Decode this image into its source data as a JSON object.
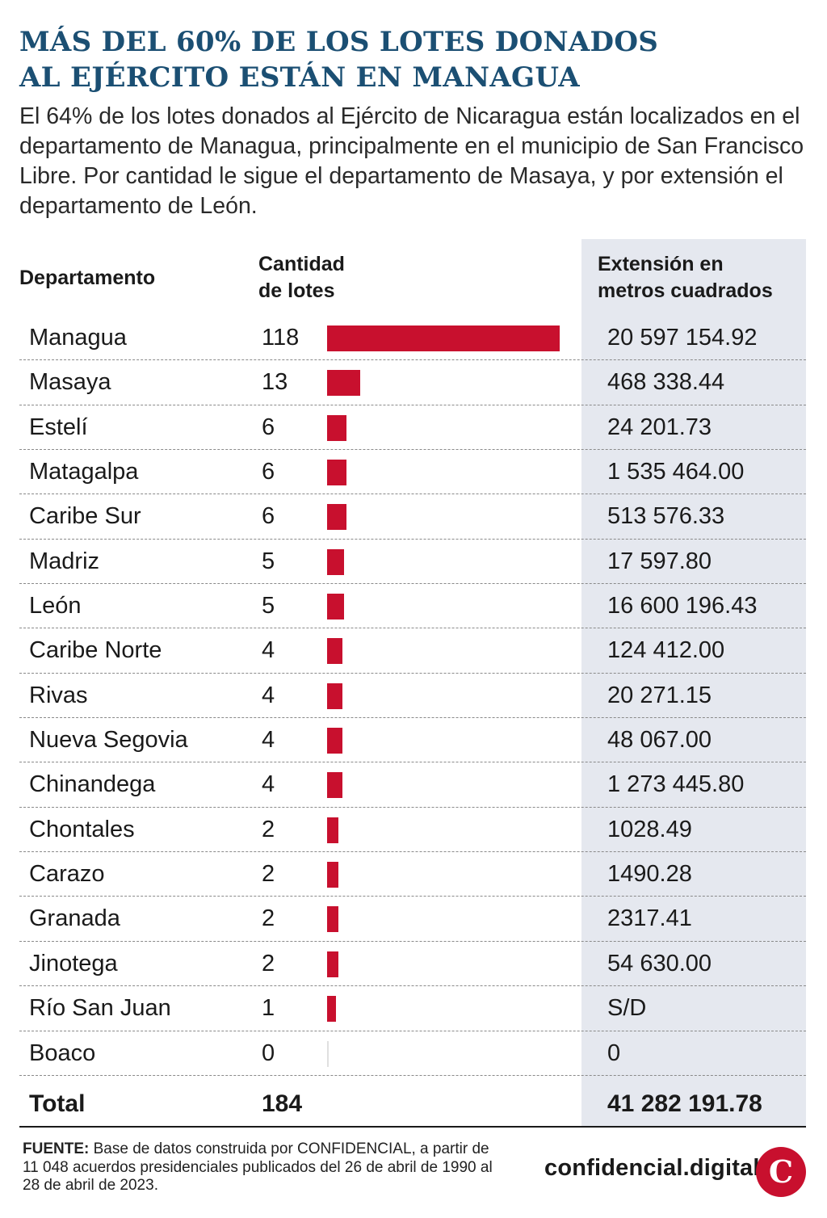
{
  "title_line1": "MÁS DEL 60% DE LOS LOTES DONADOS",
  "title_line2": "AL EJÉRCITO ESTÁN EN MANAGUA",
  "subtitle": "El 64% de los lotes donados al Ejército de Nicaragua están localizados en el departamento de Managua, principalmente en el municipio de San Francisco Libre. Por cantidad le sigue el departamento de Masaya, y por extensión el departamento de León.",
  "headers": {
    "departamento": "Departamento",
    "cantidad_line1": "Cantidad",
    "cantidad_line2": "de lotes",
    "extension_line1": "Extensión en",
    "extension_line2": "metros cuadrados"
  },
  "colors": {
    "bar": "#c8102e",
    "title": "#1b4f73",
    "extension_bg": "#e5e8ef"
  },
  "chart_data": {
    "type": "table",
    "bar_column": "cantidad",
    "bar_max": 118,
    "rows": [
      {
        "departamento": "Managua",
        "cantidad": 118,
        "cantidad_label": "118",
        "extension": "20 597 154.92"
      },
      {
        "departamento": "Masaya",
        "cantidad": 13,
        "cantidad_label": "13",
        "extension": "468 338.44"
      },
      {
        "departamento": "Estelí",
        "cantidad": 6,
        "cantidad_label": "6",
        "extension": "24 201.73"
      },
      {
        "departamento": "Matagalpa",
        "cantidad": 6,
        "cantidad_label": "6",
        "extension": "1 535 464.00"
      },
      {
        "departamento": "Caribe Sur",
        "cantidad": 6,
        "cantidad_label": "6",
        "extension": "513 576.33"
      },
      {
        "departamento": "Madriz",
        "cantidad": 5,
        "cantidad_label": "5",
        "extension": "17 597.80"
      },
      {
        "departamento": "León",
        "cantidad": 5,
        "cantidad_label": "5",
        "extension": "16 600 196.43"
      },
      {
        "departamento": "Caribe Norte",
        "cantidad": 4,
        "cantidad_label": "4",
        "extension": "124 412.00"
      },
      {
        "departamento": "Rivas",
        "cantidad": 4,
        "cantidad_label": "4",
        "extension": "20 271.15"
      },
      {
        "departamento": "Nueva Segovia",
        "cantidad": 4,
        "cantidad_label": "4",
        "extension": "48 067.00"
      },
      {
        "departamento": "Chinandega",
        "cantidad": 4,
        "cantidad_label": "4",
        "extension": "1 273 445.80"
      },
      {
        "departamento": "Chontales",
        "cantidad": 2,
        "cantidad_label": "2",
        "extension": "1028.49"
      },
      {
        "departamento": "Carazo",
        "cantidad": 2,
        "cantidad_label": "2",
        "extension": "1490.28"
      },
      {
        "departamento": "Granada",
        "cantidad": 2,
        "cantidad_label": "2",
        "extension": "2317.41"
      },
      {
        "departamento": "Jinotega",
        "cantidad": 2,
        "cantidad_label": "2",
        "extension": "54 630.00"
      },
      {
        "departamento": "Río San Juan",
        "cantidad": 1,
        "cantidad_label": "1",
        "extension": "S/D"
      },
      {
        "departamento": "Boaco",
        "cantidad": 0,
        "cantidad_label": "0",
        "extension": "0"
      }
    ]
  },
  "total": {
    "label": "Total",
    "cantidad": "184",
    "extension": "41 282 191.78"
  },
  "source": {
    "label": "FUENTE:",
    "text": " Base de datos construida por CONFIDENCIAL, a partir de 11 048 acuerdos presidenciales publicados del 26 de abril de 1990 al 28 de abril de 2023."
  },
  "brand": {
    "name": "confidencial.digital",
    "logo_letter": "C",
    "logo_icon": "confidencial-logo-icon",
    "logo_color": "#c8102e"
  }
}
